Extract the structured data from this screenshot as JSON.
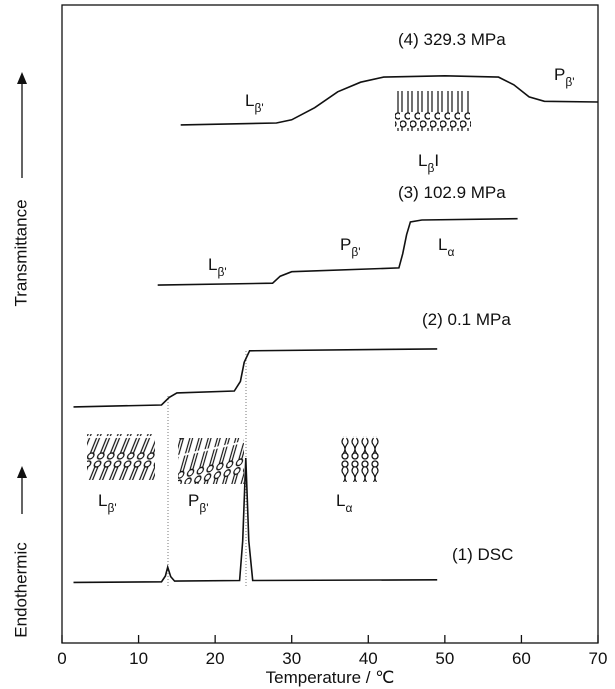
{
  "chart_data": {
    "type": "line",
    "xlabel": "Temperature / ℃",
    "ylabels": [
      "Transmittance",
      "Endothermic"
    ],
    "xlim": [
      0,
      70
    ],
    "xticks": [
      0,
      10,
      20,
      30,
      40,
      50,
      60,
      70
    ],
    "ylim": [
      0,
      100
    ],
    "color": "#111111",
    "series": [
      {
        "name": "(4) 329.3 MPa",
        "x": [
          15.5,
          28,
          30,
          33,
          36,
          39,
          42,
          50,
          57,
          59,
          61,
          63,
          70
        ],
        "values": [
          81.2,
          81.5,
          82.0,
          83.9,
          86.4,
          87.9,
          88.7,
          88.9,
          88.7,
          87.5,
          85.6,
          84.9,
          84.8
        ]
      },
      {
        "name": "(3) 102.9 MPa",
        "x": [
          12.5,
          27.5,
          28.5,
          30,
          44,
          44.5,
          45,
          45.5,
          47,
          59.5
        ],
        "values": [
          56.1,
          56.4,
          57.5,
          58.2,
          58.8,
          61,
          64,
          66,
          66.3,
          66.5
        ]
      },
      {
        "name": "(2) 0.1 MPa",
        "x": [
          1.5,
          13,
          14,
          15,
          22.5,
          23.3,
          23.8,
          24.5,
          49
        ],
        "values": [
          37.0,
          37.3,
          38.5,
          39.2,
          39.5,
          41,
          44,
          45.8,
          46.1
        ]
      },
      {
        "name": "(1) DSC",
        "x": [
          1.5,
          13,
          13.5,
          13.8,
          14.2,
          14.7,
          23.2,
          23.6,
          24,
          24.4,
          24.9,
          49
        ],
        "values": [
          9.5,
          9.6,
          10.5,
          11.9,
          10.4,
          9.7,
          9.8,
          16,
          29,
          16,
          9.8,
          9.9
        ]
      }
    ],
    "annotations": [
      {
        "text": "L",
        "sub": "β'"
      },
      {
        "text": "L",
        "sub": "β",
        "suffix": "I"
      },
      {
        "text": "P",
        "sub": "β'"
      },
      {
        "text": "L",
        "sub": "β'"
      },
      {
        "text": "P",
        "sub": "β'"
      },
      {
        "text": "L",
        "sub": "α"
      },
      {
        "text": "L",
        "sub": "β'"
      },
      {
        "text": "P",
        "sub": "β'"
      },
      {
        "text": "L",
        "sub": "α"
      }
    ]
  }
}
